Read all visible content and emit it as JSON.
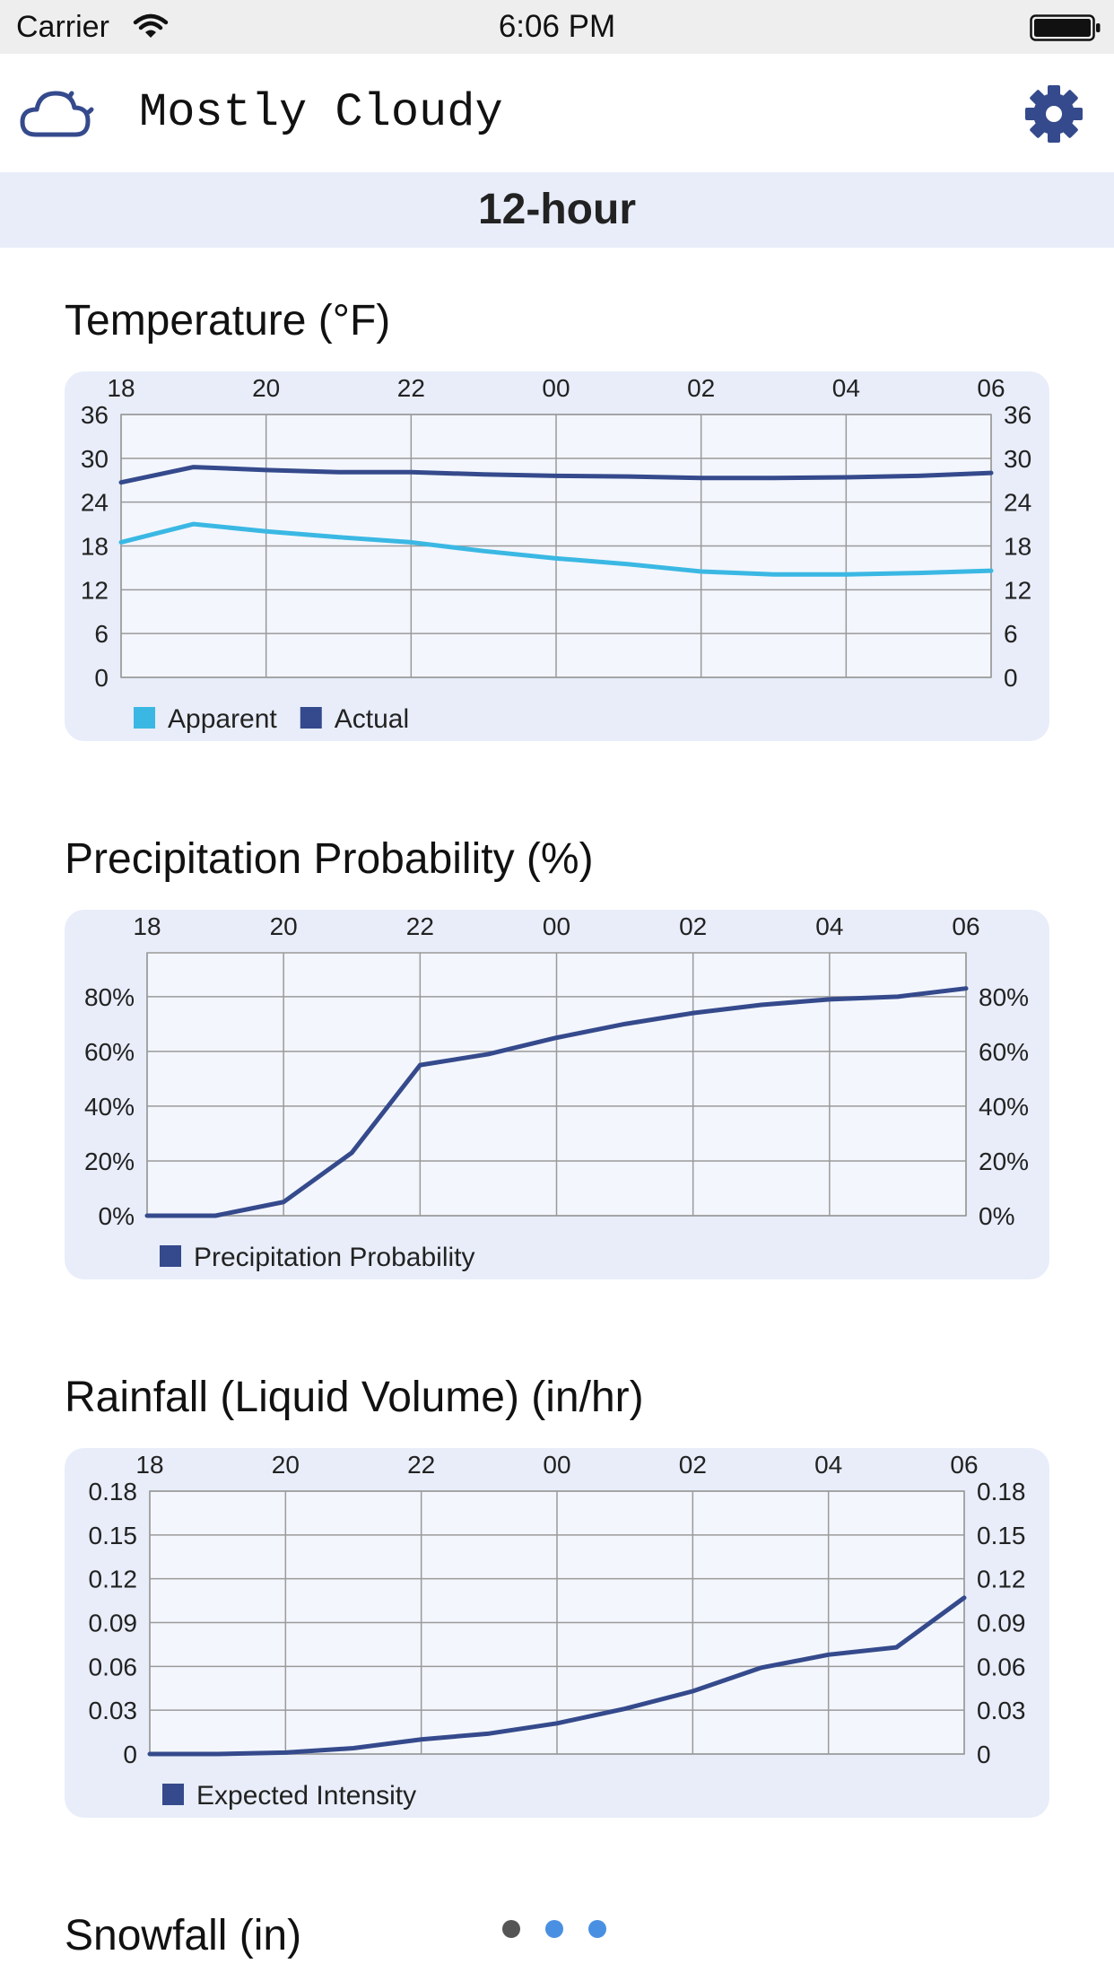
{
  "status_bar": {
    "carrier": "Carrier",
    "time": "6:06 PM"
  },
  "header": {
    "condition": "Mostly Cloudy",
    "weather_icon": "cloud-moon-icon",
    "settings_icon": "gear-icon"
  },
  "period": {
    "label": "12-hour"
  },
  "colors": {
    "accent": "#354a8c",
    "light_series": "#3ab8e3",
    "card_background": "#e8edf9",
    "plot_background": "#f3f6fd",
    "grid": "#9a9a9a",
    "page_dot_active": "#555555",
    "page_dot_inactive": "#4a90e2"
  },
  "sections": {
    "temperature": {
      "title": "Temperature (°F)"
    },
    "precipitation": {
      "title": "Precipitation Probability (%)"
    },
    "rainfall": {
      "title": "Rainfall (Liquid Volume) (in/hr)"
    },
    "snowfall": {
      "title": "Snowfall (in)"
    }
  },
  "pager": {
    "count": 3,
    "active_index": 0
  },
  "chart_data": [
    {
      "type": "line",
      "title": "Temperature (°F)",
      "x_tick_labels": [
        "18",
        "20",
        "22",
        "00",
        "02",
        "04",
        "06"
      ],
      "x": [
        0,
        1,
        2,
        3,
        4,
        5,
        6,
        7,
        8,
        9,
        10,
        11,
        12
      ],
      "y_ticks": [
        "0",
        "6",
        "12",
        "18",
        "24",
        "30",
        "36"
      ],
      "ylim": [
        0,
        36
      ],
      "grid": true,
      "legend_position": "bottom-left",
      "series": [
        {
          "name": "Apparent",
          "color": "#3ab8e3",
          "values": [
            18.5,
            21,
            20,
            19.2,
            18.5,
            17.3,
            16.3,
            15.5,
            14.5,
            14.1,
            14.1,
            14.3,
            14.6
          ]
        },
        {
          "name": "Actual",
          "color": "#354a8c",
          "values": [
            26.7,
            28.8,
            28.4,
            28.1,
            28.1,
            27.8,
            27.6,
            27.5,
            27.3,
            27.3,
            27.4,
            27.6,
            28.0
          ]
        }
      ]
    },
    {
      "type": "line",
      "title": "Precipitation Probability (%)",
      "x_tick_labels": [
        "18",
        "20",
        "22",
        "00",
        "02",
        "04",
        "06"
      ],
      "x": [
        0,
        1,
        2,
        3,
        4,
        5,
        6,
        7,
        8,
        9,
        10,
        11,
        12
      ],
      "y_ticks": [
        "0%",
        "20%",
        "40%",
        "60%",
        "80%"
      ],
      "ylim": [
        0,
        96
      ],
      "grid": true,
      "legend_position": "bottom-left",
      "series": [
        {
          "name": "Precipitation Probability",
          "color": "#354a8c",
          "values": [
            0,
            0,
            5,
            23,
            55,
            59,
            65,
            70,
            74,
            77,
            79,
            80,
            83
          ]
        }
      ]
    },
    {
      "type": "line",
      "title": "Rainfall (Liquid Volume) (in/hr)",
      "x_tick_labels": [
        "18",
        "20",
        "22",
        "00",
        "02",
        "04",
        "06"
      ],
      "x": [
        0,
        1,
        2,
        3,
        4,
        5,
        6,
        7,
        8,
        9,
        10,
        11,
        12
      ],
      "y_ticks": [
        "0",
        "0.03",
        "0.06",
        "0.09",
        "0.12",
        "0.15",
        "0.18"
      ],
      "ylim": [
        0,
        0.18
      ],
      "grid": true,
      "legend_position": "bottom-left",
      "series": [
        {
          "name": "Expected Intensity",
          "color": "#354a8c",
          "values": [
            0,
            0,
            0.001,
            0.004,
            0.01,
            0.014,
            0.021,
            0.031,
            0.043,
            0.059,
            0.068,
            0.073,
            0.107
          ]
        }
      ]
    }
  ]
}
